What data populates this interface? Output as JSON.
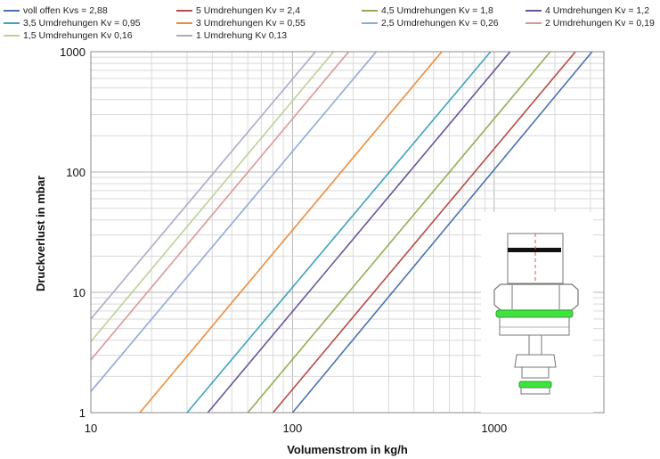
{
  "chart_data": {
    "type": "line",
    "xlabel": "Volumenstrom in kg/h",
    "ylabel": "Druckverlust in mbar",
    "xscale": "log",
    "yscale": "log",
    "xlim": [
      10,
      3500
    ],
    "ylim": [
      1,
      1000
    ],
    "x_ticks": [
      "10",
      "100",
      "1000"
    ],
    "y_ticks": [
      "1",
      "10",
      "100",
      "1000"
    ],
    "grid": true,
    "legend_position": "top",
    "series": [
      {
        "name": "voll offen Kvs = 2,88",
        "color": "#4a72b0",
        "x": [
          100,
          3060
        ],
        "y": [
          1,
          1000
        ]
      },
      {
        "name": "5 Umdrehungen Kv = 2,4",
        "color": "#b84a48",
        "x": [
          80,
          2530
        ],
        "y": [
          1,
          1000
        ]
      },
      {
        "name": "4,5 Umdrehungen Kv = 1,8",
        "color": "#92ad55",
        "x": [
          60,
          1900
        ],
        "y": [
          1,
          1000
        ]
      },
      {
        "name": "4 Umdrehungen Kv = 1,2",
        "color": "#6a549a",
        "x": [
          38,
          1200
        ],
        "y": [
          1,
          1000
        ]
      },
      {
        "name": "3,5 Umdrehungen Kv = 0,95",
        "color": "#3ea3bd",
        "x": [
          30,
          960
        ],
        "y": [
          1,
          1000
        ]
      },
      {
        "name": "3 Umdrehungen Kv = 0,55",
        "color": "#ee8c3c",
        "x": [
          17.5,
          550
        ],
        "y": [
          1,
          1000
        ]
      },
      {
        "name": "2,5 Umdrehungen Kv = 0,26",
        "color": "#92a8d8",
        "x": [
          10,
          260
        ],
        "y": [
          1.5,
          1000
        ]
      },
      {
        "name": "2 Umdrehungen Kv = 0,19",
        "color": "#d89998",
        "x": [
          10,
          190
        ],
        "y": [
          2.75,
          1000
        ]
      },
      {
        "name": "1,5 Umdrehungen Kv 0,16",
        "color": "#bed197",
        "x": [
          10,
          160
        ],
        "y": [
          3.9,
          1000
        ]
      },
      {
        "name": "1 Umdrehung Kv 0,13",
        "color": "#b0a8c6",
        "x": [
          10,
          130
        ],
        "y": [
          6,
          1000
        ]
      }
    ]
  },
  "colors": {
    "grid": "#cccccc",
    "axis": "#888888",
    "valve_green": "#39e639",
    "valve_outline": "#777777"
  }
}
